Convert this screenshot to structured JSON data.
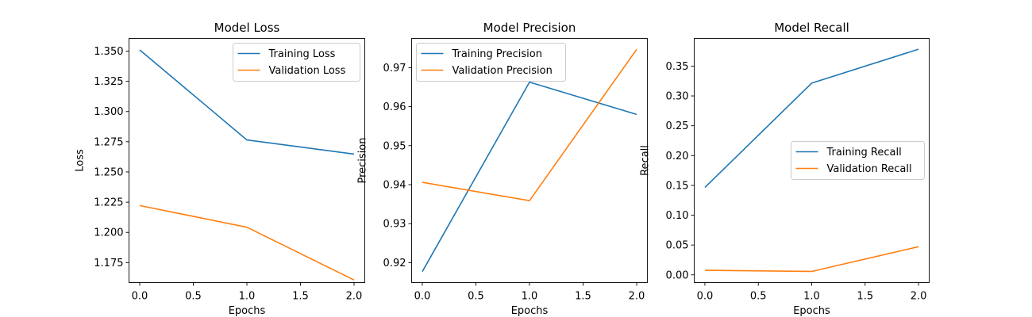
{
  "chart_data": [
    {
      "type": "line",
      "title": "Model Loss",
      "xlabel": "Epochs",
      "ylabel": "Loss",
      "xlim": [
        -0.1,
        2.1
      ],
      "ylim": [
        1.1585,
        1.3605
      ],
      "xticks": [
        0.0,
        0.5,
        1.0,
        1.5,
        2.0
      ],
      "xtick_labels": [
        "0.0",
        "0.5",
        "1.0",
        "1.5",
        "2.0"
      ],
      "yticks": [
        1.175,
        1.2,
        1.225,
        1.25,
        1.275,
        1.3,
        1.325,
        1.35
      ],
      "ytick_labels": [
        "1.175",
        "1.200",
        "1.225",
        "1.250",
        "1.275",
        "1.300",
        "1.325",
        "1.350"
      ],
      "legend": "upper right",
      "grid": false,
      "x": [
        0,
        1,
        2
      ],
      "series": [
        {
          "name": "Training Loss",
          "color": "#1f77b4",
          "values": [
            1.351,
            1.2765,
            1.2648
          ]
        },
        {
          "name": "Validation Loss",
          "color": "#ff7f0e",
          "values": [
            1.2222,
            1.2043,
            1.1606
          ]
        }
      ]
    },
    {
      "type": "line",
      "title": "Model Precision",
      "xlabel": "Epochs",
      "ylabel": "Precision",
      "xlim": [
        -0.1,
        2.1
      ],
      "ylim": [
        0.9149,
        0.9775
      ],
      "xticks": [
        0.0,
        0.5,
        1.0,
        1.5,
        2.0
      ],
      "xtick_labels": [
        "0.0",
        "0.5",
        "1.0",
        "1.5",
        "2.0"
      ],
      "yticks": [
        0.92,
        0.93,
        0.94,
        0.95,
        0.96,
        0.97
      ],
      "ytick_labels": [
        "0.92",
        "0.93",
        "0.94",
        "0.95",
        "0.96",
        "0.97"
      ],
      "legend": "upper left",
      "grid": false,
      "x": [
        0,
        1,
        2
      ],
      "series": [
        {
          "name": "Training Precision",
          "color": "#1f77b4",
          "values": [
            0.9177,
            0.9663,
            0.958
          ]
        },
        {
          "name": "Validation Precision",
          "color": "#ff7f0e",
          "values": [
            0.9406,
            0.9359,
            0.9747
          ]
        }
      ]
    },
    {
      "type": "line",
      "title": "Model Recall",
      "xlabel": "Epochs",
      "ylabel": "Recall",
      "xlim": [
        -0.1,
        2.1
      ],
      "ylim": [
        -0.0129,
        0.3964
      ],
      "xticks": [
        0.0,
        0.5,
        1.0,
        1.5,
        2.0
      ],
      "xtick_labels": [
        "0.0",
        "0.5",
        "1.0",
        "1.5",
        "2.0"
      ],
      "yticks": [
        0.0,
        0.05,
        0.1,
        0.15,
        0.2,
        0.25,
        0.3,
        0.35
      ],
      "ytick_labels": [
        "0.00",
        "0.05",
        "0.10",
        "0.15",
        "0.20",
        "0.25",
        "0.30",
        "0.35"
      ],
      "legend": "center right",
      "grid": false,
      "x": [
        0,
        1,
        2
      ],
      "series": [
        {
          "name": "Training Recall",
          "color": "#1f77b4",
          "values": [
            0.1466,
            0.3214,
            0.3783
          ]
        },
        {
          "name": "Validation Recall",
          "color": "#ff7f0e",
          "values": [
            0.0075,
            0.0057,
            0.0471
          ]
        }
      ]
    }
  ]
}
